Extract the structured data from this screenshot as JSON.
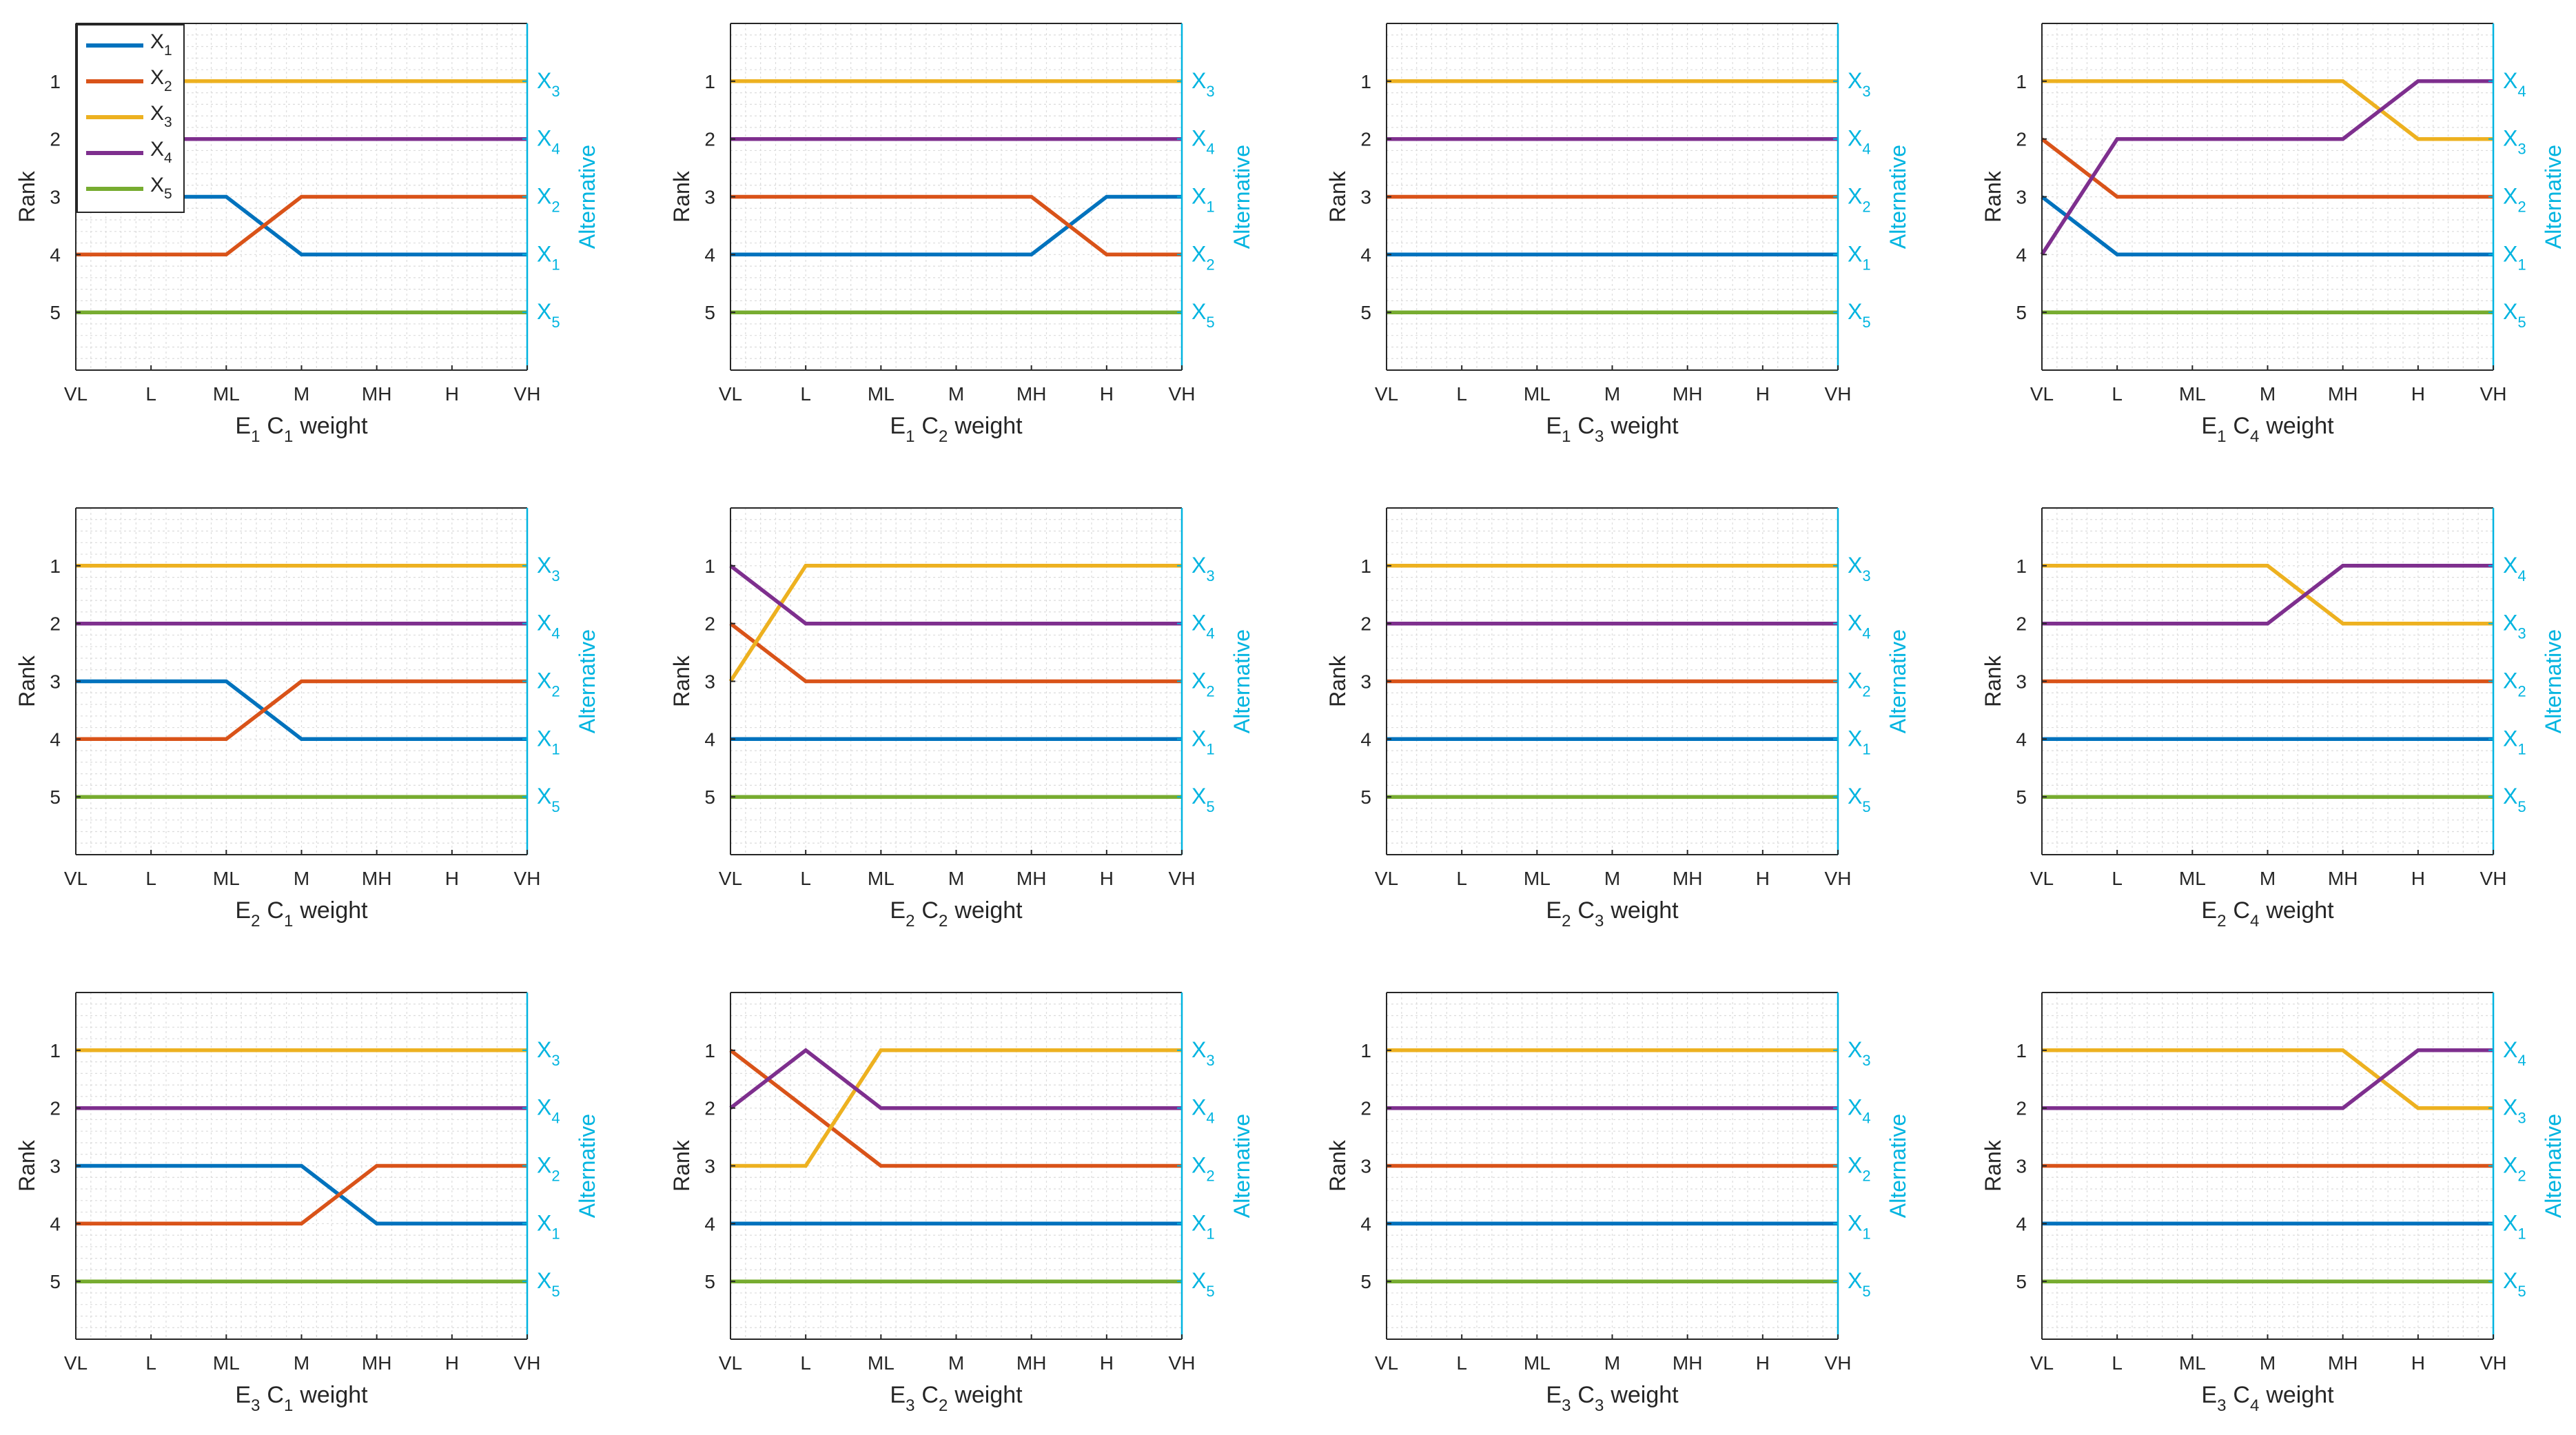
{
  "colors": {
    "X1": "#0072BD",
    "X2": "#D95319",
    "X3": "#EDB120",
    "X4": "#7E2F8E",
    "X5": "#77AC30",
    "right_axis": "#00B4E0",
    "axis": "#262626",
    "grid_minor": "#dcdcdc"
  },
  "shared": {
    "ylabel": "Rank",
    "right_ylabel": "Alternative",
    "x_ticks": [
      "VL",
      "L",
      "ML",
      "M",
      "MH",
      "H",
      "VH"
    ],
    "y_ticks": [
      "1",
      "2",
      "3",
      "4",
      "5"
    ],
    "xlabel_suffix": "weight",
    "alt_prefix": "X",
    "legend_placement": "top-left (first panel only)"
  },
  "legend": [
    {
      "prefix": "X",
      "sub": "1",
      "color": "#0072BD"
    },
    {
      "prefix": "X",
      "sub": "2",
      "color": "#D95319"
    },
    {
      "prefix": "X",
      "sub": "3",
      "color": "#EDB120"
    },
    {
      "prefix": "X",
      "sub": "4",
      "color": "#7E2F8E"
    },
    {
      "prefix": "X",
      "sub": "5",
      "color": "#77AC30"
    }
  ],
  "chart_data": [
    {
      "type": "line",
      "expert": "1",
      "criterion": "1",
      "x": [
        "VL",
        "L",
        "ML",
        "M",
        "MH",
        "H",
        "VH"
      ],
      "ylim": [
        0,
        6
      ],
      "right_labels": [
        "3",
        "4",
        "2",
        "1",
        "5"
      ],
      "series": [
        {
          "id": "X1",
          "values": [
            3,
            3,
            3,
            4,
            4,
            4,
            4
          ]
        },
        {
          "id": "X2",
          "values": [
            4,
            4,
            4,
            3,
            3,
            3,
            3
          ]
        },
        {
          "id": "X3",
          "values": [
            1,
            1,
            1,
            1,
            1,
            1,
            1
          ]
        },
        {
          "id": "X4",
          "values": [
            2,
            2,
            2,
            2,
            2,
            2,
            2
          ]
        },
        {
          "id": "X5",
          "values": [
            5,
            5,
            5,
            5,
            5,
            5,
            5
          ]
        }
      ]
    },
    {
      "type": "line",
      "expert": "1",
      "criterion": "2",
      "x": [
        "VL",
        "L",
        "ML",
        "M",
        "MH",
        "H",
        "VH"
      ],
      "ylim": [
        0,
        6
      ],
      "right_labels": [
        "3",
        "4",
        "1",
        "2",
        "5"
      ],
      "series": [
        {
          "id": "X1",
          "values": [
            4,
            4,
            4,
            4,
            4,
            3,
            3
          ]
        },
        {
          "id": "X2",
          "values": [
            3,
            3,
            3,
            3,
            3,
            4,
            4
          ]
        },
        {
          "id": "X3",
          "values": [
            1,
            1,
            1,
            1,
            1,
            1,
            1
          ]
        },
        {
          "id": "X4",
          "values": [
            2,
            2,
            2,
            2,
            2,
            2,
            2
          ]
        },
        {
          "id": "X5",
          "values": [
            5,
            5,
            5,
            5,
            5,
            5,
            5
          ]
        }
      ]
    },
    {
      "type": "line",
      "expert": "1",
      "criterion": "3",
      "x": [
        "VL",
        "L",
        "ML",
        "M",
        "MH",
        "H",
        "VH"
      ],
      "ylim": [
        0,
        6
      ],
      "right_labels": [
        "3",
        "4",
        "2",
        "1",
        "5"
      ],
      "series": [
        {
          "id": "X1",
          "values": [
            4,
            4,
            4,
            4,
            4,
            4,
            4
          ]
        },
        {
          "id": "X2",
          "values": [
            3,
            3,
            3,
            3,
            3,
            3,
            3
          ]
        },
        {
          "id": "X3",
          "values": [
            1,
            1,
            1,
            1,
            1,
            1,
            1
          ]
        },
        {
          "id": "X4",
          "values": [
            2,
            2,
            2,
            2,
            2,
            2,
            2
          ]
        },
        {
          "id": "X5",
          "values": [
            5,
            5,
            5,
            5,
            5,
            5,
            5
          ]
        }
      ]
    },
    {
      "type": "line",
      "expert": "1",
      "criterion": "4",
      "x": [
        "VL",
        "L",
        "ML",
        "M",
        "MH",
        "H",
        "VH"
      ],
      "ylim": [
        0,
        6
      ],
      "right_labels": [
        "4",
        "3",
        "2",
        "1",
        "5"
      ],
      "series": [
        {
          "id": "X1",
          "values": [
            3,
            4,
            4,
            4,
            4,
            4,
            4
          ]
        },
        {
          "id": "X2",
          "values": [
            2,
            3,
            3,
            3,
            3,
            3,
            3
          ]
        },
        {
          "id": "X3",
          "values": [
            1,
            1,
            1,
            1,
            1,
            2,
            2
          ]
        },
        {
          "id": "X4",
          "values": [
            4,
            2,
            2,
            2,
            2,
            1,
            1
          ]
        },
        {
          "id": "X5",
          "values": [
            5,
            5,
            5,
            5,
            5,
            5,
            5
          ]
        }
      ]
    },
    {
      "type": "line",
      "expert": "2",
      "criterion": "1",
      "x": [
        "VL",
        "L",
        "ML",
        "M",
        "MH",
        "H",
        "VH"
      ],
      "ylim": [
        0,
        6
      ],
      "right_labels": [
        "3",
        "4",
        "2",
        "1",
        "5"
      ],
      "series": [
        {
          "id": "X1",
          "values": [
            3,
            3,
            3,
            4,
            4,
            4,
            4
          ]
        },
        {
          "id": "X2",
          "values": [
            4,
            4,
            4,
            3,
            3,
            3,
            3
          ]
        },
        {
          "id": "X3",
          "values": [
            1,
            1,
            1,
            1,
            1,
            1,
            1
          ]
        },
        {
          "id": "X4",
          "values": [
            2,
            2,
            2,
            2,
            2,
            2,
            2
          ]
        },
        {
          "id": "X5",
          "values": [
            5,
            5,
            5,
            5,
            5,
            5,
            5
          ]
        }
      ]
    },
    {
      "type": "line",
      "expert": "2",
      "criterion": "2",
      "x": [
        "VL",
        "L",
        "ML",
        "M",
        "MH",
        "H",
        "VH"
      ],
      "ylim": [
        0,
        6
      ],
      "right_labels": [
        "3",
        "4",
        "2",
        "1",
        "5"
      ],
      "series": [
        {
          "id": "X1",
          "values": [
            4,
            4,
            4,
            4,
            4,
            4,
            4
          ]
        },
        {
          "id": "X2",
          "values": [
            2,
            3,
            3,
            3,
            3,
            3,
            3
          ]
        },
        {
          "id": "X3",
          "values": [
            3,
            1,
            1,
            1,
            1,
            1,
            1
          ]
        },
        {
          "id": "X4",
          "values": [
            1,
            2,
            2,
            2,
            2,
            2,
            2
          ]
        },
        {
          "id": "X5",
          "values": [
            5,
            5,
            5,
            5,
            5,
            5,
            5
          ]
        }
      ]
    },
    {
      "type": "line",
      "expert": "2",
      "criterion": "3",
      "x": [
        "VL",
        "L",
        "ML",
        "M",
        "MH",
        "H",
        "VH"
      ],
      "ylim": [
        0,
        6
      ],
      "right_labels": [
        "3",
        "4",
        "2",
        "1",
        "5"
      ],
      "series": [
        {
          "id": "X1",
          "values": [
            4,
            4,
            4,
            4,
            4,
            4,
            4
          ]
        },
        {
          "id": "X2",
          "values": [
            3,
            3,
            3,
            3,
            3,
            3,
            3
          ]
        },
        {
          "id": "X3",
          "values": [
            1,
            1,
            1,
            1,
            1,
            1,
            1
          ]
        },
        {
          "id": "X4",
          "values": [
            2,
            2,
            2,
            2,
            2,
            2,
            2
          ]
        },
        {
          "id": "X5",
          "values": [
            5,
            5,
            5,
            5,
            5,
            5,
            5
          ]
        }
      ]
    },
    {
      "type": "line",
      "expert": "2",
      "criterion": "4",
      "x": [
        "VL",
        "L",
        "ML",
        "M",
        "MH",
        "H",
        "VH"
      ],
      "ylim": [
        0,
        6
      ],
      "right_labels": [
        "4",
        "3",
        "2",
        "1",
        "5"
      ],
      "series": [
        {
          "id": "X1",
          "values": [
            4,
            4,
            4,
            4,
            4,
            4,
            4
          ]
        },
        {
          "id": "X2",
          "values": [
            3,
            3,
            3,
            3,
            3,
            3,
            3
          ]
        },
        {
          "id": "X3",
          "values": [
            1,
            1,
            1,
            1,
            2,
            2,
            2
          ]
        },
        {
          "id": "X4",
          "values": [
            2,
            2,
            2,
            2,
            1,
            1,
            1
          ]
        },
        {
          "id": "X5",
          "values": [
            5,
            5,
            5,
            5,
            5,
            5,
            5
          ]
        }
      ]
    },
    {
      "type": "line",
      "expert": "3",
      "criterion": "1",
      "x": [
        "VL",
        "L",
        "ML",
        "M",
        "MH",
        "H",
        "VH"
      ],
      "ylim": [
        0,
        6
      ],
      "right_labels": [
        "3",
        "4",
        "2",
        "1",
        "5"
      ],
      "series": [
        {
          "id": "X1",
          "values": [
            3,
            3,
            3,
            3,
            4,
            4,
            4
          ]
        },
        {
          "id": "X2",
          "values": [
            4,
            4,
            4,
            4,
            3,
            3,
            3
          ]
        },
        {
          "id": "X3",
          "values": [
            1,
            1,
            1,
            1,
            1,
            1,
            1
          ]
        },
        {
          "id": "X4",
          "values": [
            2,
            2,
            2,
            2,
            2,
            2,
            2
          ]
        },
        {
          "id": "X5",
          "values": [
            5,
            5,
            5,
            5,
            5,
            5,
            5
          ]
        }
      ]
    },
    {
      "type": "line",
      "expert": "3",
      "criterion": "2",
      "x": [
        "VL",
        "L",
        "ML",
        "M",
        "MH",
        "H",
        "VH"
      ],
      "ylim": [
        0,
        6
      ],
      "right_labels": [
        "3",
        "4",
        "2",
        "1",
        "5"
      ],
      "series": [
        {
          "id": "X1",
          "values": [
            4,
            4,
            4,
            4,
            4,
            4,
            4
          ]
        },
        {
          "id": "X2",
          "values": [
            1,
            2,
            3,
            3,
            3,
            3,
            3
          ]
        },
        {
          "id": "X3",
          "values": [
            3,
            3,
            1,
            1,
            1,
            1,
            1
          ]
        },
        {
          "id": "X4",
          "values": [
            2,
            1,
            2,
            2,
            2,
            2,
            2
          ]
        },
        {
          "id": "X5",
          "values": [
            5,
            5,
            5,
            5,
            5,
            5,
            5
          ]
        }
      ]
    },
    {
      "type": "line",
      "expert": "3",
      "criterion": "3",
      "x": [
        "VL",
        "L",
        "ML",
        "M",
        "MH",
        "H",
        "VH"
      ],
      "ylim": [
        0,
        6
      ],
      "right_labels": [
        "3",
        "4",
        "2",
        "1",
        "5"
      ],
      "series": [
        {
          "id": "X1",
          "values": [
            4,
            4,
            4,
            4,
            4,
            4,
            4
          ]
        },
        {
          "id": "X2",
          "values": [
            3,
            3,
            3,
            3,
            3,
            3,
            3
          ]
        },
        {
          "id": "X3",
          "values": [
            1,
            1,
            1,
            1,
            1,
            1,
            1
          ]
        },
        {
          "id": "X4",
          "values": [
            2,
            2,
            2,
            2,
            2,
            2,
            2
          ]
        },
        {
          "id": "X5",
          "values": [
            5,
            5,
            5,
            5,
            5,
            5,
            5
          ]
        }
      ]
    },
    {
      "type": "line",
      "expert": "3",
      "criterion": "4",
      "x": [
        "VL",
        "L",
        "ML",
        "M",
        "MH",
        "H",
        "VH"
      ],
      "ylim": [
        0,
        6
      ],
      "right_labels": [
        "4",
        "3",
        "2",
        "1",
        "5"
      ],
      "series": [
        {
          "id": "X1",
          "values": [
            4,
            4,
            4,
            4,
            4,
            4,
            4
          ]
        },
        {
          "id": "X2",
          "values": [
            3,
            3,
            3,
            3,
            3,
            3,
            3
          ]
        },
        {
          "id": "X3",
          "values": [
            1,
            1,
            1,
            1,
            1,
            2,
            2
          ]
        },
        {
          "id": "X4",
          "values": [
            2,
            2,
            2,
            2,
            2,
            1,
            1
          ]
        },
        {
          "id": "X5",
          "values": [
            5,
            5,
            5,
            5,
            5,
            5,
            5
          ]
        }
      ]
    }
  ]
}
